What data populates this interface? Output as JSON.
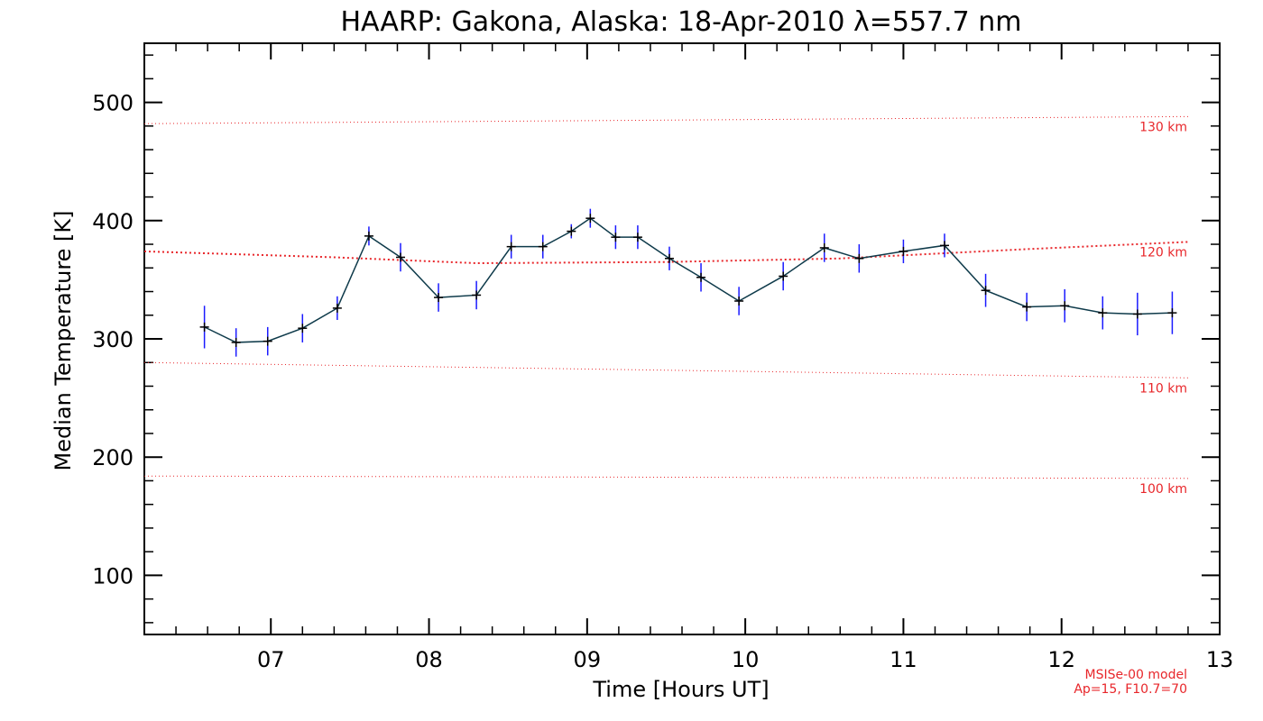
{
  "chart_data": {
    "type": "line",
    "title": "HAARP: Gakona,  Alaska: 18-Apr-2010 λ=557.7 nm",
    "xlabel": "Time [Hours UT]",
    "ylabel": "Median Temperature [K]",
    "xlim": [
      6.2,
      13.0
    ],
    "ylim": [
      50,
      550
    ],
    "xticks": [
      7,
      8,
      9,
      10,
      11,
      12,
      13
    ],
    "xtick_labels": [
      "07",
      "08",
      "09",
      "10",
      "11",
      "12",
      "13"
    ],
    "yticks": [
      100,
      200,
      300,
      400,
      500
    ],
    "ytick_labels": [
      "100",
      "200",
      "300",
      "400",
      "500"
    ],
    "grid": false,
    "colors": {
      "series": "#0e3a4a",
      "error_bar": "#1a1aff",
      "marker": "#000000",
      "model": "#e8262a"
    },
    "series": [
      {
        "x": [
          6.58,
          6.78,
          6.98,
          7.2,
          7.42,
          7.62,
          7.82,
          8.06,
          8.3,
          8.52,
          8.72,
          8.9,
          9.02,
          9.18,
          9.32,
          9.52,
          9.72,
          9.96,
          10.24,
          10.5,
          10.72,
          11.0,
          11.26,
          11.52,
          11.78,
          12.02,
          12.26,
          12.48,
          12.7
        ],
        "y": [
          310,
          297,
          298,
          309,
          326,
          387,
          369,
          335,
          337,
          378,
          378,
          391,
          402,
          386,
          386,
          368,
          352,
          332,
          353,
          377,
          368,
          374,
          379,
          341,
          327,
          328,
          322,
          321,
          322
        ],
        "err": [
          18,
          12,
          12,
          12,
          10,
          8,
          12,
          12,
          12,
          10,
          10,
          6,
          8,
          10,
          10,
          10,
          12,
          12,
          12,
          12,
          12,
          10,
          10,
          14,
          12,
          14,
          14,
          18,
          18
        ]
      }
    ],
    "model_lines": [
      {
        "label": "130 km",
        "x": [
          6.2,
          12.8
        ],
        "y": [
          482,
          488
        ]
      },
      {
        "label": "120 km",
        "x": [
          6.2,
          7.4,
          8.3,
          9.5,
          10.6,
          11.8,
          12.8
        ],
        "y": [
          374,
          369,
          364,
          365,
          368,
          376,
          382
        ]
      },
      {
        "label": "110 km",
        "x": [
          6.2,
          12.8
        ],
        "y": [
          280,
          267
        ]
      },
      {
        "label": "100 km",
        "x": [
          6.2,
          12.8
        ],
        "y": [
          184,
          182
        ]
      }
    ],
    "model_note": [
      "MSISe-00 model",
      "Ap=15, F10.7=70"
    ]
  }
}
